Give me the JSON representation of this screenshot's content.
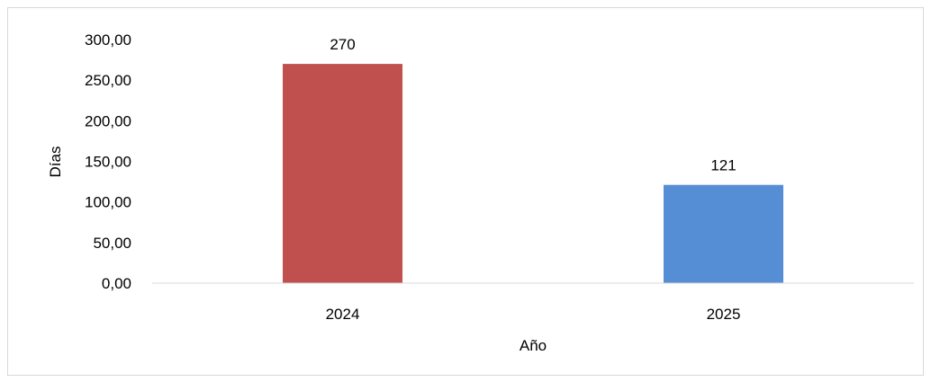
{
  "chart_data": {
    "type": "bar",
    "categories": [
      "2024",
      "2025"
    ],
    "values": [
      270,
      121
    ],
    "value_labels": [
      "270",
      "121"
    ],
    "bar_colors": [
      "#c0504d",
      "#558ed5"
    ],
    "title": "",
    "xlabel": "Año",
    "ylabel": "Días",
    "ylim": [
      0,
      300
    ],
    "yticks": [
      0,
      50,
      100,
      150,
      200,
      250,
      300
    ],
    "ytick_labels": [
      "0,00",
      "50,00",
      "100,00",
      "150,00",
      "200,00",
      "250,00",
      "300,00"
    ],
    "grid": false,
    "legend": "none",
    "axis_color": "#d9d9d9",
    "frame_color": "#d9d9d9"
  }
}
